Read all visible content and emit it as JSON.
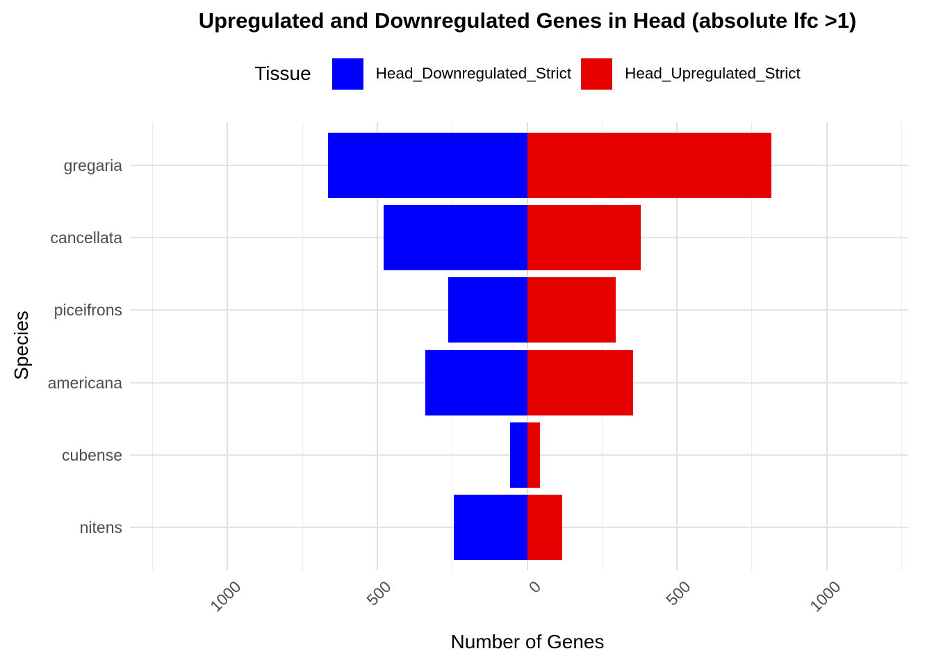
{
  "title": "Upregulated and Downregulated Genes in Head (absolute lfc >1)",
  "legend": {
    "title": "Tissue",
    "items": [
      {
        "label": "Head_Downregulated_Strict",
        "color": "#0000ff"
      },
      {
        "label": "Head_Upregulated_Strict",
        "color": "#e60000"
      }
    ]
  },
  "chart_data": {
    "type": "bar",
    "variant": "horizontal-diverging",
    "title": "Upregulated and Downregulated Genes in Head (absolute lfc >1)",
    "xlabel": "Number of Genes",
    "ylabel": "Species",
    "categories": [
      "gregaria",
      "cancellata",
      "piceifrons",
      "americana",
      "cubense",
      "nitens"
    ],
    "series": [
      {
        "name": "Head_Downregulated_Strict",
        "direction": "negative",
        "color": "#0000ff",
        "values": [
          664,
          478,
          264,
          341,
          56,
          245
        ]
      },
      {
        "name": "Head_Upregulated_Strict",
        "direction": "positive",
        "color": "#e60000",
        "values": [
          814,
          378,
          295,
          354,
          43,
          118
        ]
      }
    ],
    "x_axis": {
      "breaks": [
        -1000,
        -500,
        0,
        500,
        1000
      ],
      "tick_labels": [
        "1000",
        "500",
        "0",
        "500",
        "1000"
      ],
      "minor_breaks": [
        -1250,
        -750,
        -250,
        250,
        750,
        1250
      ],
      "range": [
        -1270,
        1272
      ],
      "tick_label_angle": 45
    },
    "grid": true,
    "legend_position": "top",
    "bar_width": 0.9
  }
}
